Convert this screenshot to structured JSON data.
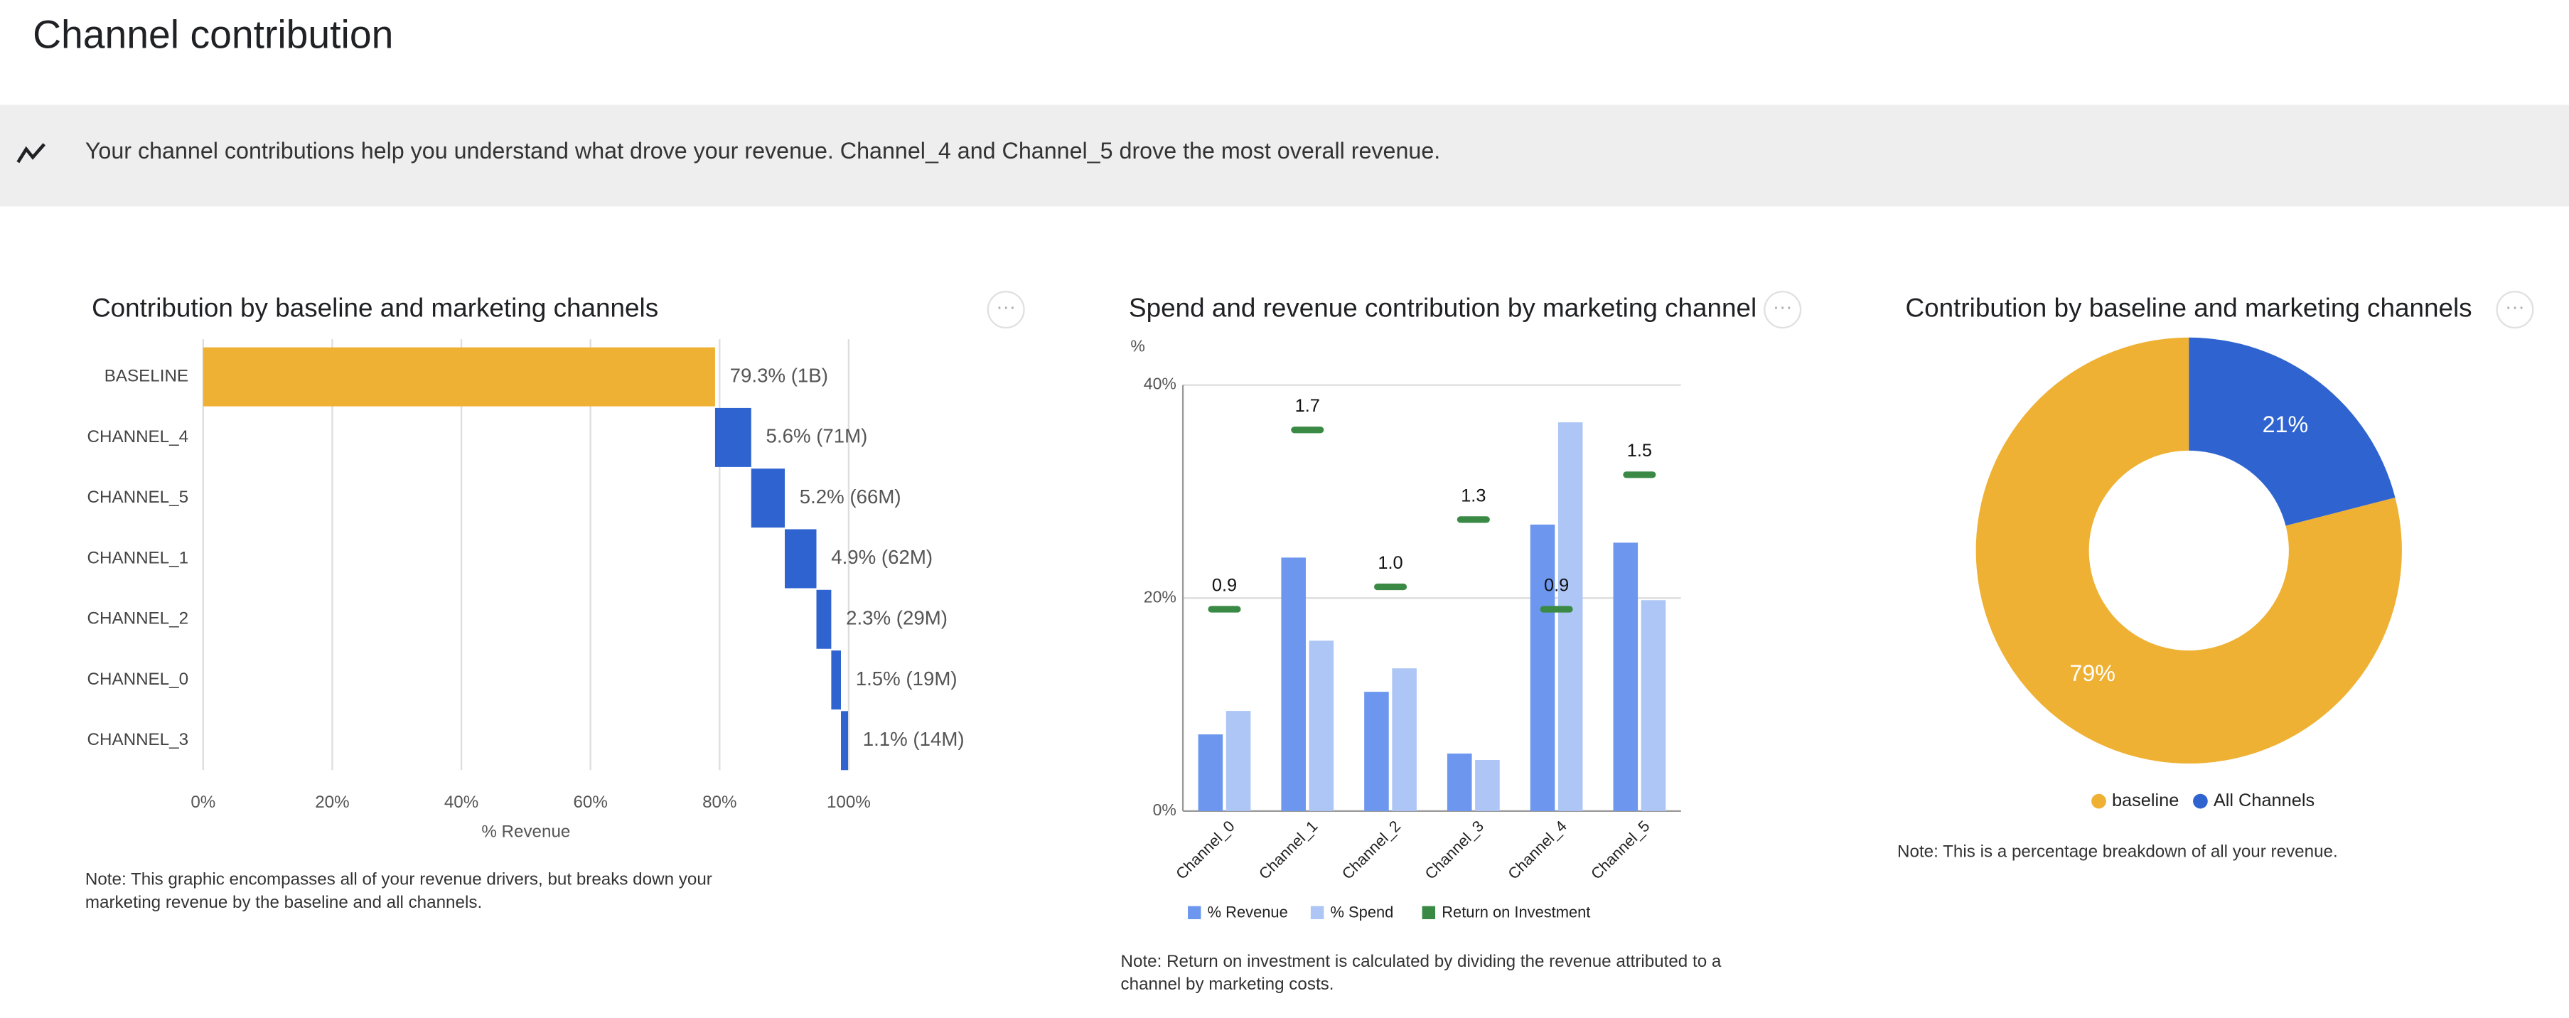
{
  "header": {
    "title": "Channel contribution"
  },
  "banner": {
    "text": "Your channel contributions help you understand what drove your revenue. Channel_4 and Channel_5 drove the most overall revenue."
  },
  "chart_data": [
    {
      "type": "waterfall",
      "title": "Contribution by baseline and marketing channels",
      "categories": [
        "BASELINE",
        "CHANNEL_4",
        "CHANNEL_5",
        "CHANNEL_1",
        "CHANNEL_2",
        "CHANNEL_0",
        "CHANNEL_3"
      ],
      "values": [
        79.3,
        5.6,
        5.2,
        4.9,
        2.3,
        1.5,
        1.1
      ],
      "value_labels": [
        "79.3% (1B)",
        "5.6% (71M)",
        "5.2% (66M)",
        "4.9% (62M)",
        "2.3% (29M)",
        "1.5% (19M)",
        "1.1% (14M)"
      ],
      "colors": [
        "#efb133",
        "#2f64d0",
        "#2f64d0",
        "#2f64d0",
        "#2f64d0",
        "#2f64d0",
        "#2f64d0"
      ],
      "xlim": [
        0,
        100
      ],
      "xticks": [
        {
          "value": 0,
          "label": "0%"
        },
        {
          "value": 20,
          "label": "20%"
        },
        {
          "value": 40,
          "label": "40%"
        },
        {
          "value": 60,
          "label": "60%"
        },
        {
          "value": 80,
          "label": "80%"
        },
        {
          "value": 100,
          "label": "100%"
        }
      ],
      "xlabel": "% Revenue",
      "grid": true,
      "note": "Note: This graphic encompasses all of your revenue drivers, but breaks down your marketing revenue by the baseline and all channels."
    },
    {
      "type": "bar",
      "title": "Spend and revenue contribution by marketing channel",
      "ylabel": "%",
      "categories": [
        "Channel_0",
        "Channel_1",
        "Channel_2",
        "Channel_3",
        "Channel_4",
        "Channel_5"
      ],
      "series": [
        {
          "name": "% Revenue",
          "color": "#6d97ee",
          "values": [
            7.2,
            23.8,
            11.2,
            5.4,
            26.9,
            25.2
          ]
        },
        {
          "name": "% Spend",
          "color": "#adc6f5",
          "values": [
            9.4,
            16.0,
            13.4,
            4.8,
            36.5,
            19.8
          ]
        },
        {
          "name": "Return on Investment",
          "color": "#3a8a45",
          "type": "marker",
          "axis": "y2",
          "values": [
            0.9,
            1.7,
            1.0,
            1.3,
            0.9,
            1.5
          ],
          "value_labels": [
            "0.9",
            "1.7",
            "1.0",
            "1.3",
            "0.9",
            "1.5"
          ]
        }
      ],
      "ylim": [
        0,
        40
      ],
      "yticks": [
        {
          "value": 0,
          "label": "0%"
        },
        {
          "value": 20,
          "label": "20%"
        },
        {
          "value": 40,
          "label": "40%"
        }
      ],
      "y2lim": [
        0,
        1.9
      ],
      "grid": true,
      "legend": "bottom",
      "note": "Note: Return on investment is calculated by dividing the revenue attributed to a channel by marketing costs."
    },
    {
      "type": "donut",
      "title": "Contribution by baseline and marketing channels",
      "categories": [
        "baseline",
        "All Channels"
      ],
      "values": [
        79,
        21
      ],
      "value_labels": [
        "79%",
        "21%"
      ],
      "colors": [
        "#efb133",
        "#2f64d0"
      ],
      "legend": "bottom",
      "note": "Note: This is a percentage breakdown of all your revenue."
    }
  ]
}
